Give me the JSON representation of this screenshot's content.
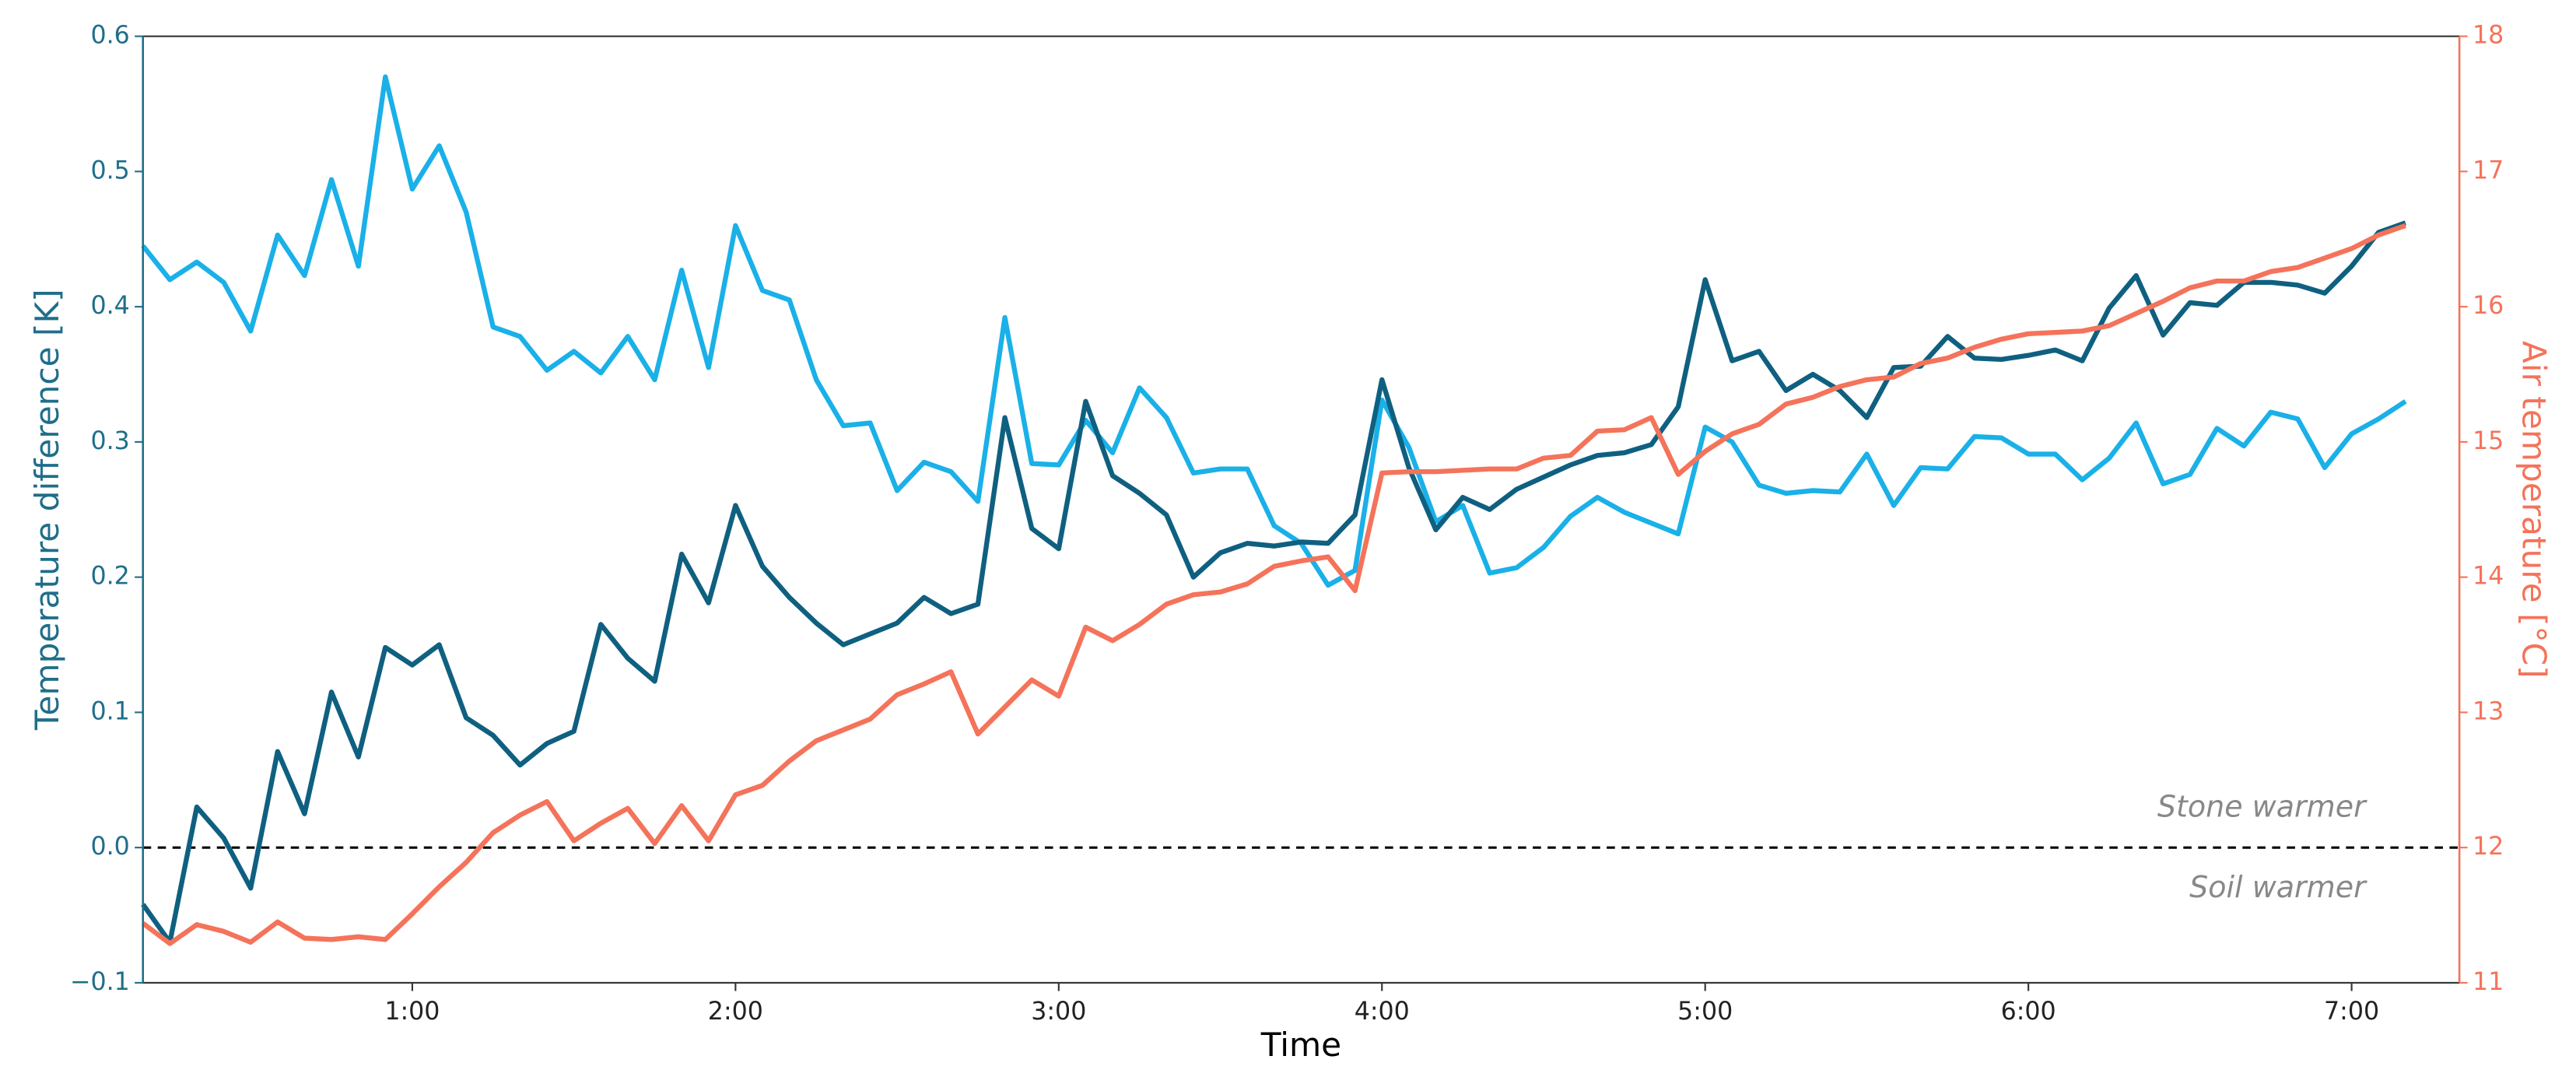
{
  "chart_data": {
    "type": "line",
    "xlabel": "Time",
    "ylabel": "Temperature difference [K]",
    "y2label": "Air temperature [°C]",
    "annotations": [
      "Stone warmer",
      "Soil warmer"
    ],
    "reference_line": 0,
    "axis_color": "#1f6e8a",
    "axis2_color": "#f4735a",
    "xlim": [
      10,
      440
    ],
    "xticks": [
      {
        "value": 60,
        "label": "1:00"
      },
      {
        "value": 120,
        "label": "2:00"
      },
      {
        "value": 180,
        "label": "3:00"
      },
      {
        "value": 240,
        "label": "4:00"
      },
      {
        "value": 300,
        "label": "5:00"
      },
      {
        "value": 360,
        "label": "6:00"
      },
      {
        "value": 420,
        "label": "7:00"
      }
    ],
    "ylim": [
      -0.1,
      0.6
    ],
    "yticks": [
      {
        "value": -0.1,
        "label": "−0.1"
      },
      {
        "value": 0,
        "label": "0.0"
      },
      0.1,
      0.2,
      0.3,
      0.4,
      0.5,
      0.6
    ],
    "y2lim": [
      11,
      18
    ],
    "y2ticks": [
      11,
      12,
      13,
      14,
      15,
      16,
      17,
      18
    ],
    "x": [
      10,
      15,
      20,
      25,
      30,
      35,
      40,
      45,
      50,
      55,
      60,
      65,
      70,
      75,
      80,
      85,
      90,
      95,
      100,
      105,
      110,
      115,
      120,
      125,
      130,
      135,
      140,
      145,
      150,
      155,
      160,
      165,
      170,
      175,
      180,
      185,
      190,
      195,
      200,
      205,
      210,
      215,
      220,
      225,
      230,
      235,
      240,
      245,
      250,
      255,
      260,
      265,
      270,
      275,
      280,
      285,
      290,
      295,
      300,
      305,
      310,
      315,
      320,
      325,
      330,
      335,
      340,
      345,
      350,
      355,
      360,
      365,
      370,
      375,
      380,
      385,
      390,
      395,
      400,
      405,
      410,
      415,
      420,
      425,
      430
    ],
    "series": [
      {
        "color": "#1ab0e8",
        "values": [
          0.445,
          0.42,
          0.433,
          0.418,
          0.382,
          0.453,
          0.423,
          0.494,
          0.43,
          0.57,
          0.487,
          0.519,
          0.47,
          0.385,
          0.378,
          0.353,
          0.367,
          0.351,
          0.378,
          0.346,
          0.427,
          0.355,
          0.46,
          0.412,
          0.405,
          0.346,
          0.312,
          0.314,
          0.264,
          0.285,
          0.278,
          0.256,
          0.392,
          0.284,
          0.283,
          0.316,
          0.292,
          0.34,
          0.318,
          0.277,
          0.28,
          0.28,
          0.238,
          0.225,
          0.194,
          0.205,
          0.331,
          0.296,
          0.241,
          0.253,
          0.203,
          0.207,
          0.222,
          0.245,
          0.259,
          0.248,
          0.24,
          0.232,
          0.311,
          0.3,
          0.268,
          0.262,
          0.264,
          0.263,
          0.291,
          0.253,
          0.281,
          0.28,
          0.304,
          0.303,
          0.291,
          0.291,
          0.272,
          0.288,
          0.314,
          0.269,
          0.276,
          0.31,
          0.297,
          0.322,
          0.317,
          0.281,
          0.306,
          0.317,
          0.33
        ]
      },
      {
        "color": "#0f6080",
        "values": [
          -0.042,
          -0.07,
          0.03,
          0.007,
          -0.03,
          0.071,
          0.025,
          0.115,
          0.067,
          0.148,
          0.135,
          0.15,
          0.096,
          0.083,
          0.061,
          0.077,
          0.086,
          0.165,
          0.14,
          0.123,
          0.217,
          0.181,
          0.253,
          0.208,
          0.185,
          0.166,
          0.15,
          0.158,
          0.166,
          0.185,
          0.173,
          0.18,
          0.318,
          0.236,
          0.221,
          0.33,
          0.275,
          0.262,
          0.246,
          0.2,
          0.218,
          0.225,
          0.223,
          0.226,
          0.225,
          0.246,
          0.346,
          0.281,
          0.235,
          0.259,
          0.25,
          0.265,
          0.274,
          0.283,
          0.29,
          0.292,
          0.298,
          0.326,
          0.42,
          0.36,
          0.367,
          0.338,
          0.35,
          0.338,
          0.318,
          0.355,
          0.356,
          0.378,
          0.362,
          0.361,
          0.364,
          0.368,
          0.36,
          0.399,
          0.423,
          0.379,
          0.403,
          0.401,
          0.418,
          0.418,
          0.416,
          0.41,
          0.43,
          0.455,
          0.462
        ]
      },
      {
        "color": "#f4735a",
        "axis": "y2",
        "values": [
          11.44,
          11.29,
          11.43,
          11.38,
          11.3,
          11.45,
          11.33,
          11.32,
          11.34,
          11.32,
          11.51,
          11.71,
          11.89,
          12.11,
          12.24,
          12.34,
          12.05,
          12.18,
          12.29,
          12.03,
          12.31,
          12.05,
          12.39,
          12.46,
          12.64,
          12.79,
          12.87,
          12.95,
          13.13,
          13.21,
          13.3,
          12.84,
          13.04,
          13.24,
          13.12,
          13.63,
          13.53,
          13.65,
          13.8,
          13.87,
          13.89,
          13.95,
          14.08,
          14.12,
          14.15,
          13.9,
          14.77,
          14.78,
          14.78,
          14.79,
          14.8,
          14.8,
          14.88,
          14.9,
          15.08,
          15.09,
          15.18,
          14.76,
          14.93,
          15.06,
          15.13,
          15.28,
          15.33,
          15.41,
          15.46,
          15.48,
          15.58,
          15.62,
          15.7,
          15.76,
          15.8,
          15.81,
          15.82,
          15.86,
          15.95,
          16.04,
          16.14,
          16.19,
          16.19,
          16.26,
          16.29,
          16.36,
          16.43,
          16.53,
          16.6
        ]
      }
    ]
  }
}
